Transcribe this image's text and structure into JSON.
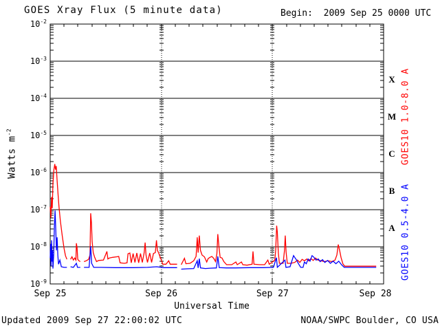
{
  "header": {
    "title": "GOES Xray Flux (5 minute data)",
    "begin_label": "Begin:  2009 Sep 25 0000 UTC"
  },
  "footer": {
    "updated": "Updated 2009 Sep 27 22:00:02 UTC",
    "source": "NOAA/SWPC Boulder, CO USA"
  },
  "chart_data": {
    "type": "line",
    "title": "GOES Xray Flux (5 minute data)",
    "xlabel": "Universal Time",
    "ylabel": {
      "base": "Watts m",
      "exp": "-2"
    },
    "x_ticks": [
      "Sep 25",
      "Sep 26",
      "Sep 27",
      "Sep 28"
    ],
    "x_range_hours": [
      0,
      72
    ],
    "x_tick_interval_hours": 3,
    "ylim": [
      1e-09,
      0.01
    ],
    "y_tick_exponents": [
      "-2",
      "-3",
      "-4",
      "-5",
      "-6",
      "-7",
      "-8",
      "-9"
    ],
    "grid": "horizontal decade lines; dotted vertical day boundaries",
    "legend_position": "right-rotated",
    "flare_classes": [
      {
        "letter": "X",
        "log_center": -3.5
      },
      {
        "letter": "M",
        "log_center": -4.5
      },
      {
        "letter": "C",
        "log_center": -5.5
      },
      {
        "letter": "B",
        "log_center": -6.5
      },
      {
        "letter": "A",
        "log_center": -7.5
      }
    ],
    "series": [
      {
        "name": "GOES10 1.0-8.0 A",
        "color": "#ff0000",
        "points": [
          [
            0,
            1.2e-07
          ],
          [
            0.15,
            6e-08
          ],
          [
            0.3,
            2.2e-07
          ],
          [
            0.45,
            1.1e-07
          ],
          [
            0.6,
            5e-07
          ],
          [
            0.8,
            1.2e-06
          ],
          [
            1.0,
            1.7e-06
          ],
          [
            1.15,
            1.2e-06
          ],
          [
            1.3,
            1.5e-06
          ],
          [
            1.5,
            6e-07
          ],
          [
            1.7,
            2.5e-07
          ],
          [
            1.9,
            1.2e-07
          ],
          [
            2.2,
            5e-08
          ],
          [
            2.6,
            2e-08
          ],
          [
            3.0,
            9e-09
          ],
          [
            3.3,
            5.8e-09
          ],
          [
            3.6,
            4.6e-09
          ],
          null,
          [
            4.4,
            4.6e-09
          ],
          [
            4.7,
            5.4e-09
          ],
          [
            5.0,
            4.4e-09
          ],
          [
            5.3,
            5e-09
          ],
          [
            5.55,
            4.4e-09
          ],
          [
            5.65,
            1.25e-08
          ],
          [
            5.8,
            9.5e-09
          ],
          [
            5.95,
            4.6e-09
          ],
          [
            6.2,
            4.2e-09
          ],
          [
            6.5,
            4e-09
          ],
          null,
          [
            7.3,
            4e-09
          ],
          [
            7.8,
            4.2e-09
          ],
          [
            8.3,
            4.6e-09
          ],
          [
            8.6,
            6e-09
          ],
          [
            8.75,
            8e-08
          ],
          [
            8.9,
            4.5e-08
          ],
          [
            9.05,
            1.4e-08
          ],
          [
            9.3,
            7e-09
          ],
          [
            9.6,
            5.2e-09
          ],
          [
            10.0,
            4e-09
          ],
          [
            10.5,
            4.3e-09
          ],
          [
            11.5,
            4.4e-09
          ],
          [
            12.25,
            7.5e-09
          ],
          [
            12.45,
            4.7e-09
          ],
          [
            12.8,
            5e-09
          ],
          [
            13.5,
            5.2e-09
          ],
          [
            14.4,
            5.4e-09
          ],
          [
            14.8,
            5.5e-09
          ],
          [
            15.1,
            3.7e-09
          ],
          [
            16.0,
            3.6e-09
          ],
          [
            16.6,
            3.7e-09
          ],
          [
            16.8,
            6.5e-09
          ],
          [
            17.2,
            6.8e-09
          ],
          [
            17.5,
            3.7e-09
          ],
          [
            17.9,
            6.6e-09
          ],
          [
            18.3,
            3.8e-09
          ],
          [
            18.7,
            6.8e-09
          ],
          [
            19.1,
            3.7e-09
          ],
          [
            19.5,
            6.6e-09
          ],
          [
            19.9,
            3.8e-09
          ],
          [
            20.3,
            7e-09
          ],
          [
            20.5,
            1.3e-08
          ],
          [
            20.7,
            6e-09
          ],
          [
            21.0,
            3.8e-09
          ],
          [
            21.5,
            6.8e-09
          ],
          [
            21.9,
            3.8e-09
          ],
          [
            22.3,
            6.6e-09
          ],
          [
            22.7,
            7e-09
          ],
          [
            22.95,
            1.5e-08
          ],
          [
            23.15,
            8e-09
          ],
          [
            23.4,
            7e-09
          ],
          [
            23.7,
            5.5e-09
          ],
          [
            24.0,
            4.4e-09
          ],
          [
            24.3,
            3.4e-09
          ],
          [
            25.0,
            3.4e-09
          ],
          [
            25.6,
            4.2e-09
          ],
          [
            25.9,
            3.4e-09
          ],
          [
            26.6,
            3.4e-09
          ],
          [
            27.4,
            3.4e-09
          ],
          null,
          [
            28.3,
            3.3e-09
          ],
          [
            29.0,
            4.9e-09
          ],
          [
            29.3,
            3.5e-09
          ],
          [
            30.2,
            3.6e-09
          ],
          [
            31.0,
            4.2e-09
          ],
          [
            31.5,
            5.5e-09
          ],
          [
            31.75,
            1.8e-08
          ],
          [
            31.95,
            7e-09
          ],
          [
            32.2,
            2e-08
          ],
          [
            32.45,
            8e-09
          ],
          [
            32.8,
            6e-09
          ],
          [
            33.3,
            5.4e-09
          ],
          [
            33.8,
            3.9e-09
          ],
          [
            34.1,
            4.8e-09
          ],
          [
            34.5,
            5.2e-09
          ],
          [
            34.9,
            5.5e-09
          ],
          [
            35.3,
            4.9e-09
          ],
          [
            35.7,
            4e-09
          ],
          [
            36.0,
            6.6e-09
          ],
          [
            36.2,
            2.2e-08
          ],
          [
            36.45,
            1e-08
          ],
          [
            36.7,
            5.2e-09
          ],
          [
            37.1,
            5e-09
          ],
          [
            37.5,
            4e-09
          ],
          [
            38.1,
            3.3e-09
          ],
          [
            39.2,
            3.3e-09
          ],
          [
            40.1,
            3.9e-09
          ],
          [
            40.4,
            3.3e-09
          ],
          [
            41.3,
            3.9e-09
          ],
          [
            41.6,
            3.3e-09
          ],
          [
            42.5,
            3.2e-09
          ],
          [
            43.6,
            3.4e-09
          ],
          [
            43.8,
            7.5e-09
          ],
          [
            44.0,
            3.4e-09
          ],
          [
            45.2,
            3.3e-09
          ],
          [
            46.3,
            3.3e-09
          ],
          [
            47.0,
            4.4e-09
          ],
          [
            47.3,
            3.4e-09
          ],
          [
            48.0,
            3.9e-09
          ],
          [
            48.5,
            4.4e-09
          ],
          [
            48.7,
            8e-09
          ],
          [
            48.9,
            3.7e-08
          ],
          [
            49.05,
            2.5e-08
          ],
          [
            49.25,
            7e-09
          ],
          [
            49.5,
            3.6e-09
          ],
          [
            50.3,
            3.6e-09
          ],
          [
            50.6,
            8e-09
          ],
          [
            50.75,
            2e-08
          ],
          [
            50.95,
            7e-09
          ],
          [
            51.2,
            3.6e-09
          ],
          [
            52.0,
            3.6e-09
          ],
          [
            52.8,
            3.8e-09
          ],
          [
            53.4,
            4.4e-09
          ],
          [
            53.9,
            3.8e-09
          ],
          [
            54.4,
            4.6e-09
          ],
          [
            54.9,
            4.2e-09
          ],
          [
            55.4,
            4.7e-09
          ],
          [
            55.8,
            4.2e-09
          ],
          [
            56.3,
            4.8e-09
          ],
          [
            56.8,
            4.3e-09
          ],
          [
            57.3,
            5e-09
          ],
          [
            57.8,
            4.4e-09
          ],
          [
            58.4,
            4.2e-09
          ],
          [
            59.2,
            4e-09
          ],
          [
            60.0,
            4.2e-09
          ],
          [
            60.8,
            4e-09
          ],
          [
            61.5,
            4.4e-09
          ],
          [
            61.9,
            6e-09
          ],
          [
            62.2,
            1.15e-08
          ],
          [
            62.5,
            8e-09
          ],
          [
            62.8,
            5.2e-09
          ],
          [
            63.2,
            3.5e-09
          ],
          [
            63.6,
            3e-09
          ],
          [
            65.0,
            3e-09
          ],
          [
            67.0,
            3e-09
          ],
          [
            69.0,
            3e-09
          ],
          [
            70.4,
            3e-09
          ]
        ]
      },
      {
        "name": "GOES10 0.5-4.0 A",
        "color": "#0000ff",
        "points": [
          [
            0,
            5e-09
          ],
          [
            0.1,
            1.2e-08
          ],
          [
            0.2,
            3e-09
          ],
          [
            0.3,
            1.5e-08
          ],
          [
            0.4,
            4e-09
          ],
          [
            0.5,
            8e-09
          ],
          [
            0.6,
            2.6e-09
          ],
          [
            0.75,
            6e-09
          ],
          [
            0.9,
            3.5e-08
          ],
          [
            1.05,
            9.5e-08
          ],
          [
            1.2,
            3e-08
          ],
          [
            1.35,
            8e-09
          ],
          [
            1.5,
            1.8e-08
          ],
          [
            1.65,
            6e-09
          ],
          [
            1.8,
            3.4e-09
          ],
          [
            2.1,
            4.4e-09
          ],
          [
            2.4,
            2.9e-09
          ],
          [
            3.0,
            2.8e-09
          ],
          [
            3.6,
            2.8e-09
          ],
          null,
          [
            4.4,
            2.9e-09
          ],
          [
            5.0,
            2.8e-09
          ],
          [
            5.65,
            3.6e-09
          ],
          [
            5.9,
            2.8e-09
          ],
          [
            6.5,
            2.8e-09
          ],
          null,
          [
            7.3,
            2.8e-09
          ],
          [
            8.4,
            2.8e-09
          ],
          [
            8.75,
            1.05e-08
          ],
          [
            8.95,
            3.6e-09
          ],
          [
            9.4,
            2.8e-09
          ],
          [
            11,
            2.8e-09
          ],
          [
            14,
            2.75e-09
          ],
          [
            18,
            2.75e-09
          ],
          [
            21,
            2.8e-09
          ],
          [
            23,
            2.9e-09
          ],
          [
            24.5,
            2.75e-09
          ],
          [
            26,
            2.75e-09
          ],
          [
            27.4,
            2.75e-09
          ],
          null,
          [
            28.3,
            2.5e-09
          ],
          [
            29.5,
            2.55e-09
          ],
          [
            31.0,
            2.6e-09
          ],
          [
            31.75,
            4.2e-09
          ],
          [
            31.95,
            2.7e-09
          ],
          [
            32.2,
            4.8e-09
          ],
          [
            32.45,
            2.7e-09
          ],
          [
            33.5,
            2.6e-09
          ],
          [
            34.5,
            2.65e-09
          ],
          [
            35.9,
            2.7e-09
          ],
          [
            36.2,
            5.5e-09
          ],
          [
            36.5,
            2.75e-09
          ],
          [
            38,
            2.7e-09
          ],
          [
            40,
            2.7e-09
          ],
          [
            43,
            2.75e-09
          ],
          [
            46,
            2.75e-09
          ],
          [
            48.2,
            2.8e-09
          ],
          [
            48.85,
            5.1e-09
          ],
          [
            49.05,
            2.8e-09
          ],
          [
            50.7,
            4.4e-09
          ],
          [
            50.9,
            2.8e-09
          ],
          [
            51.8,
            2.9e-09
          ],
          [
            52.55,
            5.8e-09
          ],
          [
            52.9,
            5e-09
          ],
          [
            53.2,
            4.4e-09
          ],
          [
            53.6,
            3.5e-09
          ],
          [
            54.1,
            2.8e-09
          ],
          [
            54.6,
            2.8e-09
          ],
          [
            54.9,
            3.9e-09
          ],
          [
            55.3,
            3.5e-09
          ],
          [
            55.7,
            4.7e-09
          ],
          [
            56.1,
            4.1e-09
          ],
          [
            56.55,
            5.8e-09
          ],
          [
            56.9,
            5.3e-09
          ],
          [
            57.4,
            4.4e-09
          ],
          [
            57.9,
            4.7e-09
          ],
          [
            58.3,
            4e-09
          ],
          [
            58.8,
            4.5e-09
          ],
          [
            59.3,
            3.8e-09
          ],
          [
            59.9,
            4.3e-09
          ],
          [
            60.5,
            3.6e-09
          ],
          [
            61.1,
            4.1e-09
          ],
          [
            61.7,
            3.5e-09
          ],
          [
            62.3,
            4.1e-09
          ],
          [
            62.9,
            3.3e-09
          ],
          [
            63.5,
            2.8e-09
          ],
          [
            65,
            2.8e-09
          ],
          [
            67.5,
            2.8e-09
          ],
          [
            70.4,
            2.8e-09
          ]
        ]
      }
    ]
  }
}
